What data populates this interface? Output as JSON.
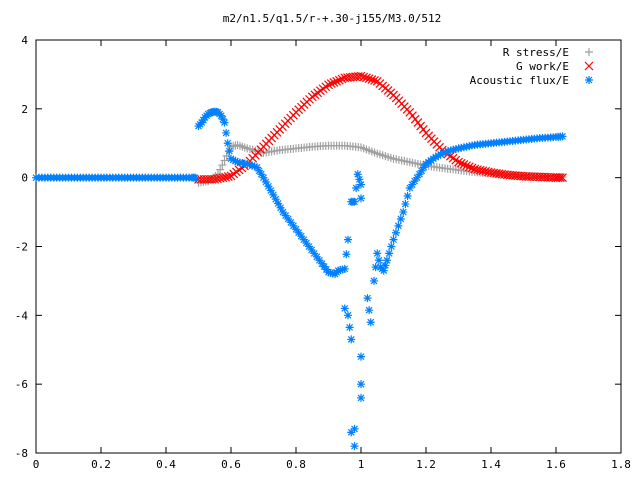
{
  "chart_data": {
    "type": "scatter",
    "title": "m2/n1.5/q1.5/r-+.30-j155/M3.0/512",
    "xlabel": "",
    "ylabel": "",
    "xlim": [
      0,
      1.8
    ],
    "ylim": [
      -8,
      4
    ],
    "x_ticks": [
      "0",
      "0.2",
      "0.4",
      "0.6",
      "0.8",
      "1",
      "1.2",
      "1.4",
      "1.6",
      "1.8"
    ],
    "y_ticks": [
      "4",
      "2",
      "0",
      "-2",
      "-4",
      "-6",
      "-8"
    ],
    "legend_position": "top-right",
    "grid": false,
    "series": [
      {
        "name": "R stress/E",
        "marker": "+",
        "color": "#a0a0a0",
        "x": [
          0.5,
          0.53,
          0.56,
          0.58,
          0.6,
          0.62,
          0.65,
          0.7,
          0.75,
          0.8,
          0.85,
          0.9,
          0.95,
          1.0,
          1.05,
          1.1,
          1.15,
          1.2,
          1.25,
          1.3,
          1.35,
          1.4,
          1.45,
          1.5,
          1.55,
          1.6,
          1.62
        ],
        "y": [
          -0.15,
          -0.1,
          0.1,
          0.5,
          0.9,
          0.95,
          0.85,
          0.72,
          0.8,
          0.85,
          0.9,
          0.93,
          0.93,
          0.88,
          0.7,
          0.55,
          0.45,
          0.35,
          0.28,
          0.22,
          0.16,
          0.12,
          0.08,
          0.05,
          0.03,
          0.02,
          0.02
        ]
      },
      {
        "name": "G work/E",
        "marker": "x",
        "color": "#ff0000",
        "x": [
          0.5,
          0.55,
          0.6,
          0.65,
          0.7,
          0.75,
          0.8,
          0.85,
          0.9,
          0.95,
          1.0,
          1.05,
          1.1,
          1.15,
          1.2,
          1.25,
          1.3,
          1.35,
          1.4,
          1.45,
          1.5,
          1.55,
          1.6,
          1.62
        ],
        "y": [
          -0.05,
          -0.05,
          0.05,
          0.4,
          0.9,
          1.4,
          1.9,
          2.35,
          2.7,
          2.9,
          2.95,
          2.8,
          2.4,
          1.9,
          1.3,
          0.8,
          0.45,
          0.25,
          0.15,
          0.08,
          0.04,
          0.02,
          0.0,
          0.0
        ]
      },
      {
        "name": "Acoustic flux/E",
        "marker": "*",
        "color": "#0080ff",
        "x": [
          0.0,
          0.1,
          0.2,
          0.3,
          0.4,
          0.48,
          0.49,
          0.5,
          0.51,
          0.52,
          0.53,
          0.54,
          0.55,
          0.56,
          0.57,
          0.58,
          0.59,
          0.6,
          0.62,
          0.65,
          0.68,
          0.7,
          0.73,
          0.76,
          0.8,
          0.84,
          0.88,
          0.9,
          0.92,
          0.93,
          0.95,
          0.96,
          0.97,
          0.98,
          0.99,
          1.0,
          1.0,
          0.96,
          0.97,
          0.95,
          1.0,
          0.98,
          0.98,
          0.97,
          1.0,
          1.0,
          1.02,
          1.03,
          1.04,
          1.05,
          1.06,
          1.07,
          1.08,
          1.1,
          1.13,
          1.15,
          1.18,
          1.2,
          1.23,
          1.26,
          1.3,
          1.35,
          1.4,
          1.45,
          1.5,
          1.55,
          1.6,
          1.62
        ],
        "y": [
          0,
          0,
          0,
          0,
          0,
          0,
          0,
          1.5,
          1.6,
          1.75,
          1.85,
          1.9,
          1.92,
          1.9,
          1.8,
          1.6,
          1.0,
          0.55,
          0.45,
          0.4,
          0.3,
          0.0,
          -0.5,
          -1.0,
          -1.5,
          -2.0,
          -2.5,
          -2.75,
          -2.8,
          -2.7,
          -2.65,
          -1.8,
          -0.7,
          -0.7,
          0.1,
          -0.2,
          -0.6,
          -4.0,
          -4.7,
          -3.8,
          -6.0,
          -7.3,
          -7.8,
          -7.4,
          -6.4,
          -5.2,
          -3.5,
          -4.2,
          -3.0,
          -2.2,
          -2.6,
          -2.7,
          -2.4,
          -1.8,
          -1.0,
          -0.3,
          0.1,
          0.4,
          0.6,
          0.75,
          0.85,
          0.95,
          1.0,
          1.05,
          1.1,
          1.15,
          1.18,
          1.2
        ]
      }
    ]
  }
}
